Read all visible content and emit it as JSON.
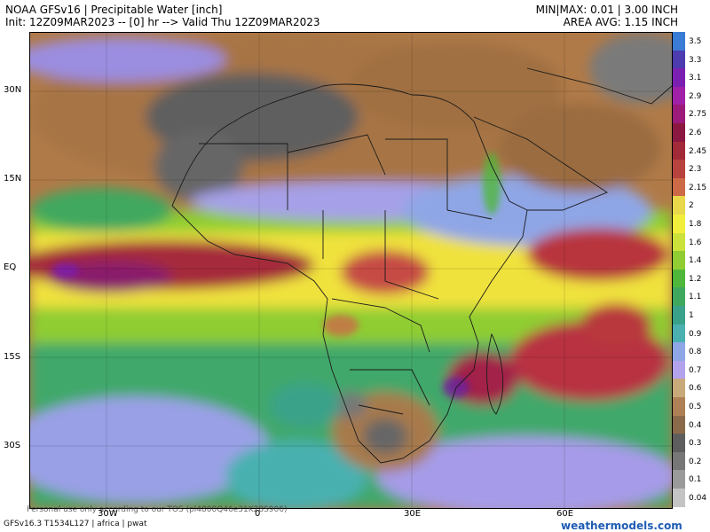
{
  "header": {
    "title": "NOAA GFSv16 | Precipitable Water [inch]",
    "init_line": "Init: 12Z09MAR2023 -- [0] hr --> Valid Thu 12Z09MAR2023",
    "minmax": "MIN|MAX: 0.01 | 3.00 INCH",
    "area_avg": "AREA AVG: 1.15 INCH"
  },
  "map": {
    "lat_labels": [
      "30N",
      "15N",
      "EQ",
      "15S",
      "30S"
    ],
    "lon_labels": [
      "30W",
      "0",
      "30E",
      "60E"
    ],
    "disclaimer": "Personal use only according to our TOS (pl4800Q46e31K28S906)"
  },
  "colorbar": {
    "labels": [
      "3.5",
      "3.3",
      "3.1",
      "2.9",
      "2.75",
      "2.6",
      "2.45",
      "2.3",
      "2.15",
      "2",
      "1.8",
      "1.6",
      "1.4",
      "1.2",
      "1.1",
      "1",
      "0.9",
      "0.8",
      "0.7",
      "0.6",
      "0.5",
      "0.4",
      "0.3",
      "0.2",
      "0.1",
      "0.04"
    ],
    "colors": [
      "#3a7bd5",
      "#4d3bb0",
      "#7b1fb3",
      "#a020a8",
      "#9c1a7a",
      "#8a1840",
      "#a22a38",
      "#b8433e",
      "#cc6a48",
      "#e8d84a",
      "#f2ee3c",
      "#cbe23a",
      "#8fcd33",
      "#4fb83a",
      "#3fa85e",
      "#3aa28a",
      "#4ab0b0",
      "#8fa6e6",
      "#b2a3ec",
      "#c8a97a",
      "#ad8155",
      "#8a6a4a",
      "#5e5e5e",
      "#777777",
      "#9a9a9a",
      "#c4c4c4"
    ]
  },
  "footer": {
    "model_info": "GFSv16.3 T1534L127 | africa | pwat",
    "brand": "weathermodels.com"
  }
}
